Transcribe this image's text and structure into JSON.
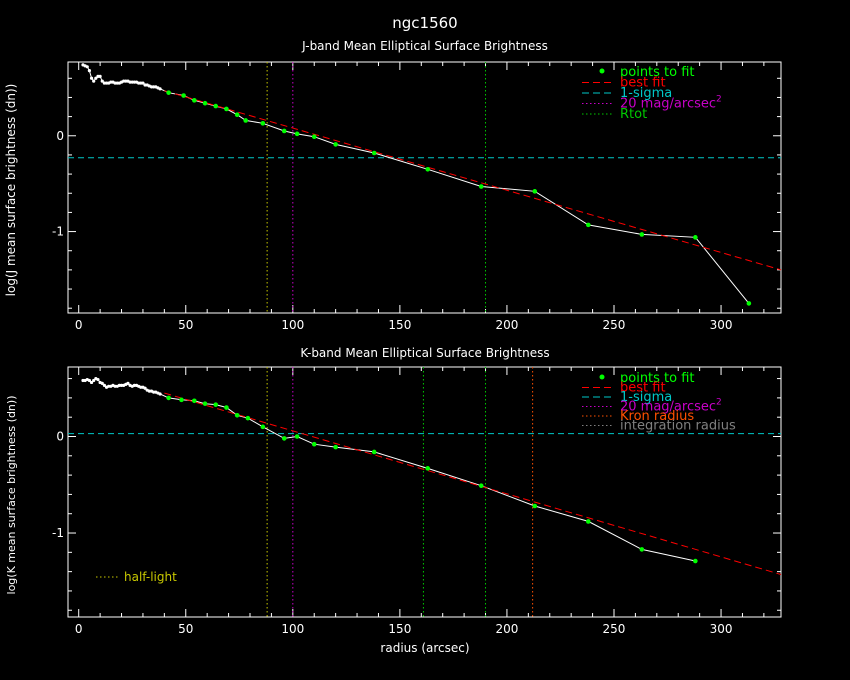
{
  "page_title": "ngc1560",
  "colors": {
    "background": "#000000",
    "axes": "#ffffff",
    "fit_points": "#00ff00",
    "best_fit": "#ff0000",
    "one_sigma": "#00c8c8",
    "mag20": "#c800c8",
    "rtot": "#00c800",
    "kron": "#ff5000",
    "integration": "#808080",
    "half_light": "#c8c800",
    "profile_line": "#ffffff"
  },
  "chart_data": [
    {
      "type": "scatter",
      "title": "J-band Mean Elliptical Surface Brightness",
      "xlabel": "",
      "ylabel": "log(J mean surface brightness (dn))",
      "xlim": [
        -5,
        328
      ],
      "ylim": [
        -1.85,
        0.77
      ],
      "x_ticks": [
        0,
        50,
        100,
        150,
        200,
        250,
        300
      ],
      "y_ticks": [
        0,
        -1
      ],
      "grid": false,
      "legend_position": "top-right",
      "legend": [
        {
          "label": "points to fit",
          "style": "dot",
          "color": "#00ff00"
        },
        {
          "label": "best fit",
          "style": "dashed",
          "color": "#ff0000"
        },
        {
          "label": "1-sigma",
          "style": "dashed",
          "color": "#00c8c8"
        },
        {
          "label": "20 mag/arcsec",
          "sup": "2",
          "style": "dotted",
          "color": "#c800c8"
        },
        {
          "label": "Rtot",
          "style": "dotted",
          "color": "#00c800"
        }
      ],
      "inner_points": {
        "x": [
          2,
          3,
          4,
          5,
          6,
          7,
          8,
          9,
          10,
          11,
          12,
          13,
          14,
          15,
          16,
          17,
          18,
          19,
          20,
          21,
          22,
          23,
          24,
          25,
          26,
          27,
          28,
          29,
          30,
          31,
          32,
          33,
          34,
          35,
          36,
          37,
          38
        ],
        "y": [
          0.74,
          0.73,
          0.72,
          0.68,
          0.6,
          0.57,
          0.6,
          0.62,
          0.62,
          0.57,
          0.55,
          0.55,
          0.55,
          0.56,
          0.56,
          0.55,
          0.55,
          0.55,
          0.56,
          0.57,
          0.57,
          0.57,
          0.56,
          0.56,
          0.56,
          0.56,
          0.55,
          0.55,
          0.55,
          0.53,
          0.53,
          0.52,
          0.51,
          0.51,
          0.51,
          0.5,
          0.49
        ]
      },
      "fit_points": {
        "x": [
          42,
          49,
          54,
          59,
          64,
          69,
          74,
          78,
          86,
          96,
          102,
          110,
          120,
          138,
          163,
          188,
          213,
          238,
          263,
          288,
          313
        ],
        "y": [
          0.45,
          0.42,
          0.37,
          0.34,
          0.31,
          0.28,
          0.22,
          0.16,
          0.13,
          0.05,
          0.02,
          -0.01,
          -0.09,
          -0.18,
          -0.35,
          -0.53,
          -0.58,
          -0.93,
          -1.03,
          -1.06,
          -1.75
        ]
      },
      "best_fit": {
        "x": [
          40,
          328
        ],
        "y": [
          0.47,
          -1.4
        ]
      },
      "one_sigma_y": -0.23,
      "vlines": [
        {
          "x": 88,
          "color": "#c8c800"
        },
        {
          "x": 100,
          "color": "#c800c8"
        },
        {
          "x": 190,
          "color": "#00c800"
        }
      ]
    },
    {
      "type": "scatter",
      "title": "K-band Mean Elliptical Surface Brightness",
      "xlabel": "radius (arcsec)",
      "ylabel": "log(K mean surface brightness (dn))",
      "xlim": [
        -5,
        328
      ],
      "ylim": [
        -1.87,
        0.72
      ],
      "x_ticks": [
        0,
        50,
        100,
        150,
        200,
        250,
        300
      ],
      "y_ticks": [
        0,
        -1
      ],
      "grid": false,
      "legend_position": "top-right",
      "legend": [
        {
          "label": "points to fit",
          "style": "dot",
          "color": "#00ff00"
        },
        {
          "label": "best fit",
          "style": "dashed",
          "color": "#ff0000"
        },
        {
          "label": "1-sigma",
          "style": "dashed",
          "color": "#00c8c8"
        },
        {
          "label": "20 mag/arcsec",
          "sup": "2",
          "style": "dotted",
          "color": "#c800c8"
        },
        {
          "label": "Kron radius",
          "style": "dotted",
          "color": "#ff5000"
        },
        {
          "label": "integration radius",
          "style": "dotted",
          "color": "#808080"
        }
      ],
      "extra_legend": {
        "label": "half-light",
        "color": "#c8c800",
        "position": "bottom-left"
      },
      "inner_points": {
        "x": [
          2,
          3,
          4,
          5,
          6,
          7,
          8,
          9,
          10,
          11,
          12,
          13,
          14,
          15,
          16,
          17,
          18,
          19,
          20,
          21,
          22,
          23,
          24,
          25,
          26,
          27,
          28,
          29,
          30,
          31,
          32,
          33,
          34,
          35,
          36,
          37,
          38
        ],
        "y": [
          0.58,
          0.58,
          0.59,
          0.58,
          0.56,
          0.58,
          0.6,
          0.59,
          0.56,
          0.55,
          0.53,
          0.51,
          0.52,
          0.52,
          0.53,
          0.52,
          0.52,
          0.53,
          0.53,
          0.53,
          0.54,
          0.55,
          0.53,
          0.52,
          0.53,
          0.53,
          0.52,
          0.51,
          0.51,
          0.5,
          0.48,
          0.47,
          0.47,
          0.46,
          0.46,
          0.45,
          0.44
        ]
      },
      "fit_points": {
        "x": [
          42,
          48,
          54,
          59,
          64,
          69,
          74,
          79,
          86,
          96,
          102,
          110,
          120,
          138,
          163,
          188,
          213,
          238,
          263,
          288
        ],
        "y": [
          0.4,
          0.38,
          0.37,
          0.34,
          0.33,
          0.3,
          0.22,
          0.19,
          0.1,
          -0.02,
          0.0,
          -0.08,
          -0.11,
          -0.16,
          -0.33,
          -0.51,
          -0.72,
          -0.88,
          -1.17,
          -1.29
        ]
      },
      "best_fit": {
        "x": [
          40,
          328
        ],
        "y": [
          0.45,
          -1.43
        ]
      },
      "one_sigma_y": 0.03,
      "vlines": [
        {
          "x": 88,
          "color": "#c8c800"
        },
        {
          "x": 100,
          "color": "#c800c8"
        },
        {
          "x": 161,
          "color": "#00c800"
        },
        {
          "x": 190,
          "color": "#00c800"
        },
        {
          "x": 212,
          "color": "#ff5000"
        }
      ]
    }
  ]
}
